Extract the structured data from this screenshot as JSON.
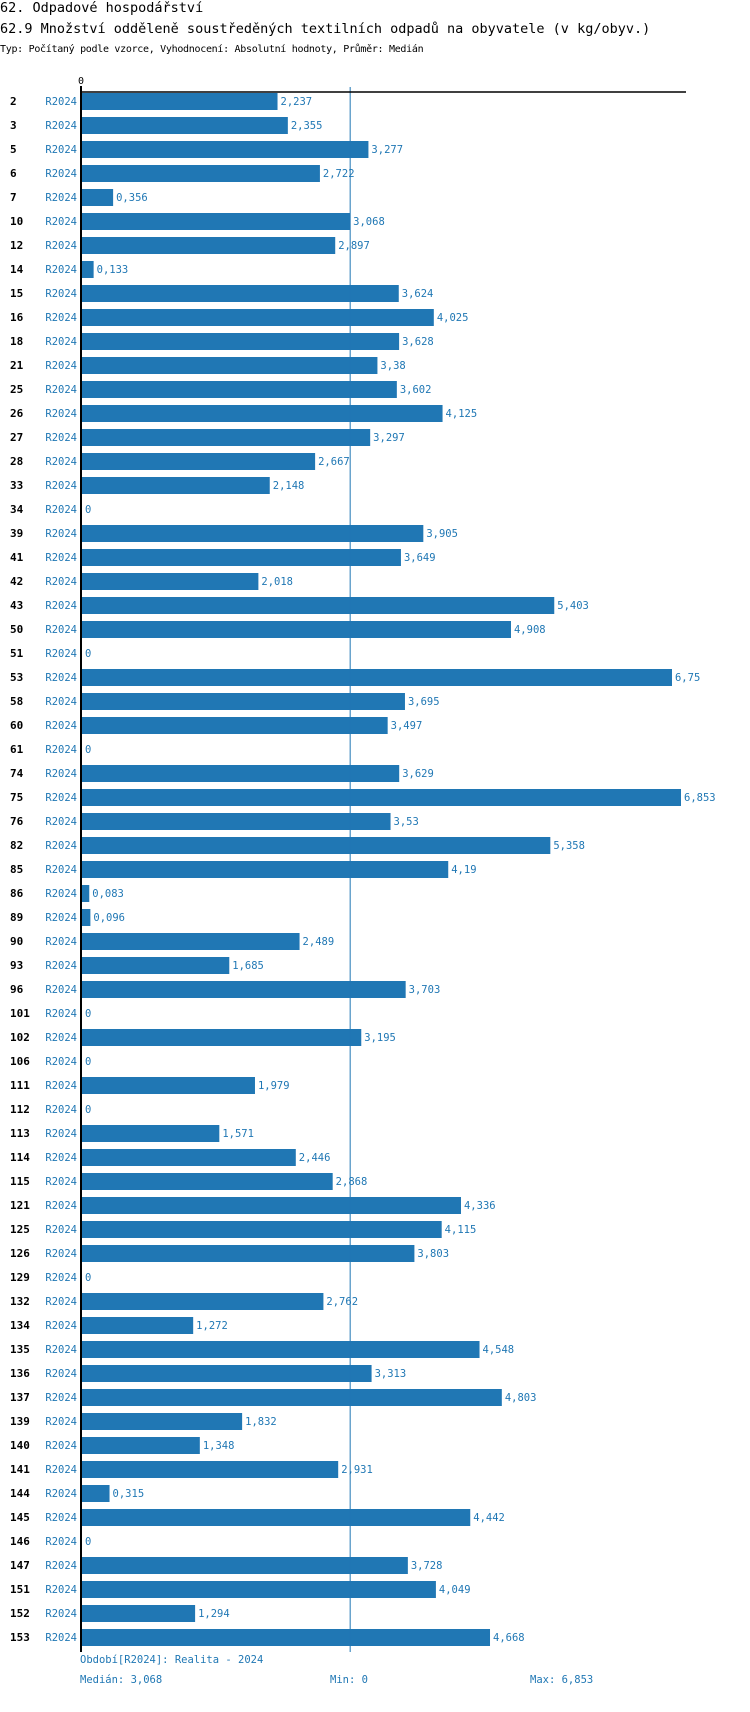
{
  "header": {
    "section": "62. Odpadové hospodářství",
    "title": "62.9 Množství odděleně soustředěných textilních odpadů na obyvatele (v kg/obyv.)",
    "subtitle": "Typ: Počítaný podle vzorce, Vyhodnocení: Absolutní hodnoty, Průměr: Medián"
  },
  "footer": {
    "period": "Období[R2024]: Realita - 2024",
    "median": "Medián: 3,068",
    "min": "Min: 0",
    "max": "Max: 6,853"
  },
  "colors": {
    "bar": "#2077b4",
    "text_accent": "#1f77b4",
    "axis": "#000000",
    "median_line": "#2077b4"
  },
  "chart_data": {
    "type": "bar",
    "orientation": "horizontal",
    "title": "62.9 Množství odděleně soustředěných textilních odpadů na obyvatele (v kg/obyv.)",
    "xlabel": "",
    "ylabel": "",
    "axis_zero_label": "0",
    "xlim": [
      0,
      6.853
    ],
    "median": 3.068,
    "min": 0,
    "max": 6.853,
    "series_name": "R2024",
    "categories": [
      "2",
      "3",
      "5",
      "6",
      "7",
      "10",
      "12",
      "14",
      "15",
      "16",
      "18",
      "21",
      "25",
      "26",
      "27",
      "28",
      "33",
      "34",
      "39",
      "41",
      "42",
      "43",
      "50",
      "51",
      "53",
      "58",
      "60",
      "61",
      "74",
      "75",
      "76",
      "82",
      "85",
      "86",
      "89",
      "90",
      "93",
      "96",
      "101",
      "102",
      "106",
      "111",
      "112",
      "113",
      "114",
      "115",
      "121",
      "125",
      "126",
      "129",
      "132",
      "134",
      "135",
      "136",
      "137",
      "139",
      "140",
      "141",
      "144",
      "145",
      "146",
      "147",
      "151",
      "152",
      "153"
    ],
    "values": [
      2.237,
      2.355,
      3.277,
      2.722,
      0.356,
      3.068,
      2.897,
      0.133,
      3.624,
      4.025,
      3.628,
      3.38,
      3.602,
      4.125,
      3.297,
      2.667,
      2.148,
      0,
      3.905,
      3.649,
      2.018,
      5.403,
      4.908,
      0,
      6.75,
      3.695,
      3.497,
      0,
      3.629,
      6.853,
      3.53,
      5.358,
      4.19,
      0.083,
      0.096,
      2.489,
      1.685,
      3.703,
      0,
      3.195,
      0,
      1.979,
      0,
      1.571,
      2.446,
      2.868,
      4.336,
      4.115,
      3.803,
      0,
      2.762,
      1.272,
      4.548,
      3.313,
      4.803,
      1.832,
      1.348,
      2.931,
      0.315,
      4.442,
      0,
      3.728,
      4.049,
      1.294,
      4.668
    ],
    "value_labels": [
      "2,237",
      "2,355",
      "3,277",
      "2,722",
      "0,356",
      "3,068",
      "2,897",
      "0,133",
      "3,624",
      "4,025",
      "3,628",
      "3,38",
      "3,602",
      "4,125",
      "3,297",
      "2,667",
      "2,148",
      "0",
      "3,905",
      "3,649",
      "2,018",
      "5,403",
      "4,908",
      "0",
      "6,75",
      "3,695",
      "3,497",
      "0",
      "3,629",
      "6,853",
      "3,53",
      "5,358",
      "4,19",
      "0,083",
      "0,096",
      "2,489",
      "1,685",
      "3,703",
      "0",
      "3,195",
      "0",
      "1,979",
      "0",
      "1,571",
      "2,446",
      "2,868",
      "4,336",
      "4,115",
      "3,803",
      "0",
      "2,762",
      "1,272",
      "4,548",
      "3,313",
      "4,803",
      "1,832",
      "1,348",
      "2,931",
      "0,315",
      "4,442",
      "0",
      "3,728",
      "4,049",
      "1,294",
      "4,668"
    ],
    "grid": false,
    "legend": "none"
  }
}
